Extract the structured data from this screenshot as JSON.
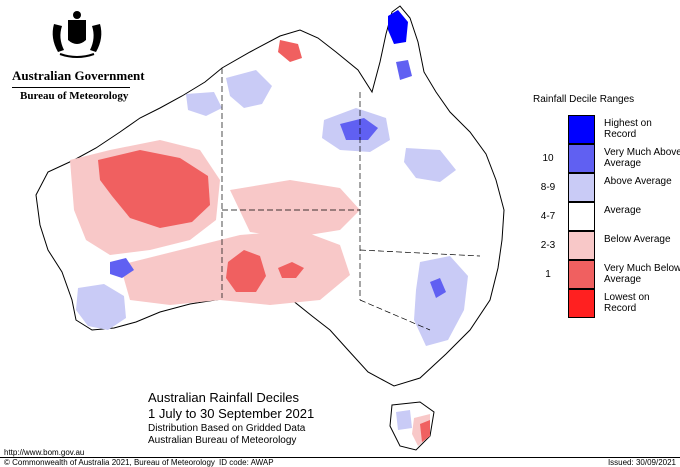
{
  "header": {
    "government": "Australian Government",
    "department": "Bureau of Meteorology"
  },
  "map": {
    "title": "Australian Rainfall Deciles",
    "period": "1 July to 30 September 2021",
    "subtitle_1": "Distribution Based on Gridded Data",
    "subtitle_2": "Australian Bureau of Meteorology"
  },
  "legend": {
    "title": "Rainfall Decile Ranges",
    "items": [
      {
        "range": "",
        "label": "Highest on Record",
        "color": "#0000ff"
      },
      {
        "range": "10",
        "label": "Very Much Above Average",
        "color": "#6060f2"
      },
      {
        "range": "8-9",
        "label": "Above Average",
        "color": "#c9cbf6"
      },
      {
        "range": "4-7",
        "label": "Average",
        "color": "#ffffff"
      },
      {
        "range": "2-3",
        "label": "Below Average",
        "color": "#f8c8c8"
      },
      {
        "range": "1",
        "label": "Very Much Below Average",
        "color": "#f06060"
      },
      {
        "range": "",
        "label": "Lowest on Record",
        "color": "#ff2020"
      }
    ]
  },
  "footer": {
    "url": "http://www.bom.gov.au",
    "copyright": "© Commonwealth of Australia 2021, Bureau of Meteorology",
    "id_code": "ID code: AWAP",
    "issued": "Issued: 30/09/2021"
  }
}
